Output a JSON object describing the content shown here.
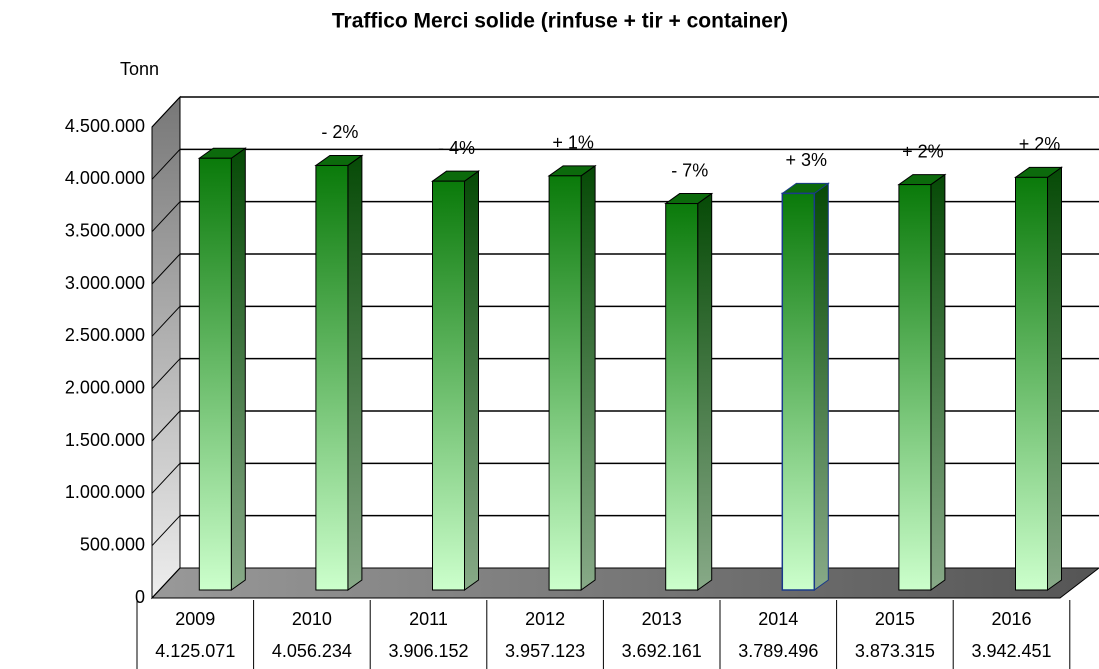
{
  "chart_data": {
    "type": "bar3d",
    "title": "Traffico Merci solide (rinfuse + tir + container)",
    "y_label": "Tonn",
    "categories": [
      "2009",
      "2010",
      "2011",
      "2012",
      "2013",
      "2014",
      "2015",
      "2016"
    ],
    "values": [
      4125071,
      4056234,
      3906152,
      3957123,
      3692161,
      3789496,
      3873315,
      3942451
    ],
    "value_labels": [
      "4.125.071",
      "4.056.234",
      "3.906.152",
      "3.957.123",
      "3.692.161",
      "3.789.496",
      "3.873.315",
      "3.942.451"
    ],
    "annotations": [
      null,
      "- 2%",
      "- 4%",
      "+ 1%",
      "- 7%",
      "+ 3%",
      "+ 2%",
      "+ 2%"
    ],
    "color": "#0a7a0a",
    "ylim": [
      0,
      4500000
    ],
    "yticks": [
      0,
      {
        "value": 500000,
        "label": "500.000"
      },
      {
        "value": 1000000,
        "label": "1.000.000"
      },
      {
        "value": 1500000,
        "label": "1.500.000"
      },
      {
        "value": 2000000,
        "label": "2.000.000"
      },
      {
        "value": 2500000,
        "label": "2.500.000"
      },
      {
        "value": 3000000,
        "label": "3.000.000"
      },
      {
        "value": 3500000,
        "label": "3.500.000"
      },
      {
        "value": 4000000,
        "label": "4.000.000"
      },
      {
        "value": 4500000,
        "label": "4.500.000"
      }
    ],
    "grid": true
  }
}
